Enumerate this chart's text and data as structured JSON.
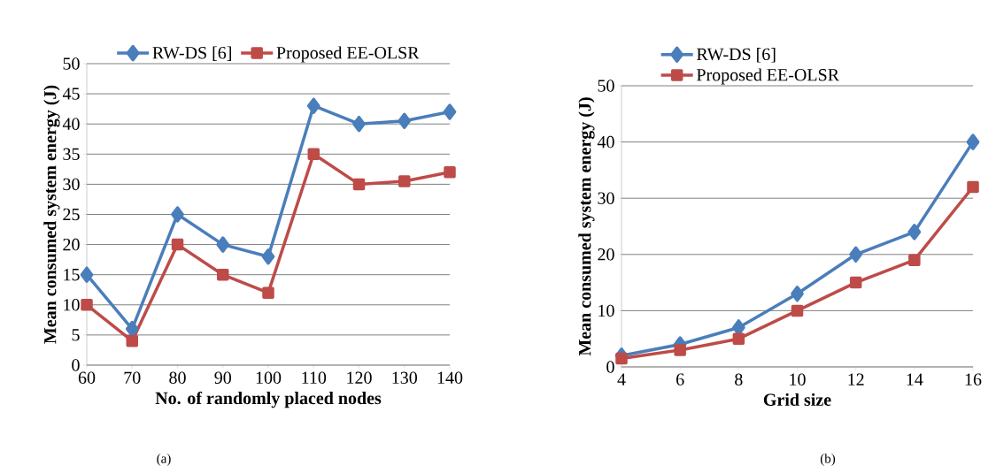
{
  "chart_data": [
    {
      "type": "line",
      "xlabel": "No. of randomly placed nodes",
      "ylabel": "Mean consumed system energy (J)",
      "annotations": [
        "(a)"
      ],
      "x": [
        60,
        70,
        80,
        90,
        100,
        110,
        120,
        130,
        140
      ],
      "series": [
        {
          "name": "RW-DS [6]",
          "color": "#4a7ebb",
          "marker": "diamond",
          "values": [
            15,
            6,
            25,
            20,
            18,
            43,
            40,
            40.5,
            42
          ]
        },
        {
          "name": "Proposed EE-OLSR",
          "color": "#be4b48",
          "marker": "square",
          "values": [
            10,
            4,
            20,
            15,
            12,
            35,
            30,
            30.5,
            32
          ]
        }
      ],
      "xlim": [
        60,
        140
      ],
      "xticks": [
        60,
        70,
        80,
        90,
        100,
        110,
        120,
        130,
        140
      ],
      "ylim": [
        0,
        50
      ],
      "yticks": [
        0,
        5,
        10,
        15,
        20,
        25,
        30,
        35,
        40,
        45,
        50
      ],
      "grid": "y",
      "legend": "top",
      "line_style": "solid"
    },
    {
      "type": "line",
      "xlabel": "Grid size",
      "ylabel": "Mean consumed system energy (J)",
      "annotations": [
        "(b)"
      ],
      "x": [
        4,
        6,
        8,
        10,
        12,
        14,
        16
      ],
      "series": [
        {
          "name": "RW-DS [6]",
          "color": "#4a7ebb",
          "marker": "diamond",
          "values": [
            2,
            4,
            7,
            13,
            20,
            24,
            40
          ]
        },
        {
          "name": "Proposed EE-OLSR",
          "color": "#be4b48",
          "marker": "square",
          "values": [
            1.5,
            3,
            5,
            10,
            15,
            19,
            32
          ]
        }
      ],
      "xlim": [
        4,
        16
      ],
      "xticks": [
        4,
        6,
        8,
        10,
        12,
        14,
        16
      ],
      "ylim": [
        0,
        50
      ],
      "yticks": [
        0,
        10,
        20,
        30,
        40,
        50
      ],
      "grid": "y",
      "legend": "top left",
      "line_style": "solid"
    }
  ]
}
